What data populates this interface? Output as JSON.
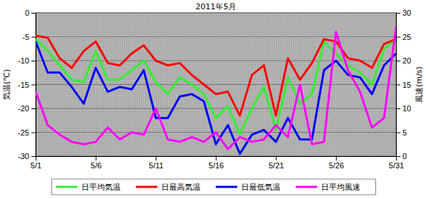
{
  "chart_data": {
    "type": "line",
    "title": "2011年5月",
    "ylabel": "気温(℃)",
    "y2label": "風速(m/s)",
    "categories": [
      "5/1",
      null,
      null,
      null,
      null,
      "5/6",
      null,
      null,
      null,
      null,
      "5/11",
      null,
      null,
      null,
      null,
      "5/16",
      null,
      null,
      null,
      null,
      "5/21",
      null,
      null,
      null,
      null,
      "5/26",
      null,
      null,
      null,
      null,
      "5/31"
    ],
    "series": [
      {
        "name": "日平均気温",
        "color": "#33ee33",
        "values": [
          -5.5,
          -8,
          -11,
          -14,
          -14.5,
          -8,
          -14,
          -14,
          -12,
          -10,
          -14.5,
          -17,
          -13.5,
          -15,
          -17,
          -22,
          -19.5,
          -25.5,
          -20,
          -15.5,
          -24.5,
          -13.5,
          -19,
          -17,
          -6,
          -8.5,
          -11,
          -12.5,
          -15,
          -7.5,
          -5.5
        ]
      },
      {
        "name": "日最高気温",
        "color": "#ff0000",
        "values": [
          -4.8,
          -5.2,
          -9.5,
          -11.5,
          -8,
          -6,
          -10.5,
          -11,
          -8.5,
          -6.8,
          -10,
          -11,
          -10.5,
          -13,
          -15,
          -17,
          -16.5,
          -21.5,
          -13,
          -11,
          -21.5,
          -9.5,
          -14,
          -10.5,
          -5.5,
          -6,
          -9.5,
          -10,
          -11.5,
          -6.5,
          -5.5
        ]
      },
      {
        "name": "日最低気温",
        "color": "#0000ff",
        "values": [
          -6,
          -12.5,
          -12.5,
          -15.5,
          -19,
          -11.5,
          -16.5,
          -15.5,
          -16,
          -12,
          -22,
          -22,
          -17.5,
          -17,
          -18.5,
          -27.5,
          -23.5,
          -29.5,
          -25.5,
          -24.5,
          -27,
          -22,
          -26.5,
          -26.5,
          -12,
          -10,
          -13,
          -13.5,
          -17,
          -11,
          -8.5
        ]
      },
      {
        "name": "日平均風速",
        "color": "#ff00ff",
        "axis": "y2",
        "values": [
          13.5,
          6.5,
          4.5,
          3,
          2.5,
          3,
          6,
          3.5,
          5,
          4.5,
          10,
          3.5,
          3,
          4,
          3,
          5,
          1.5,
          4,
          3,
          3.5,
          6.5,
          4,
          15,
          2.5,
          3,
          26,
          18,
          13.5,
          6,
          8,
          27
        ]
      }
    ],
    "ylim": [
      -30,
      0
    ],
    "yticks": [
      -30,
      -25,
      -20,
      -15,
      -10,
      -5,
      0
    ],
    "y2lim": [
      0,
      30
    ],
    "y2ticks": [
      0,
      5,
      10,
      15,
      20,
      25,
      30
    ],
    "grid": true,
    "legend": "bottom"
  }
}
